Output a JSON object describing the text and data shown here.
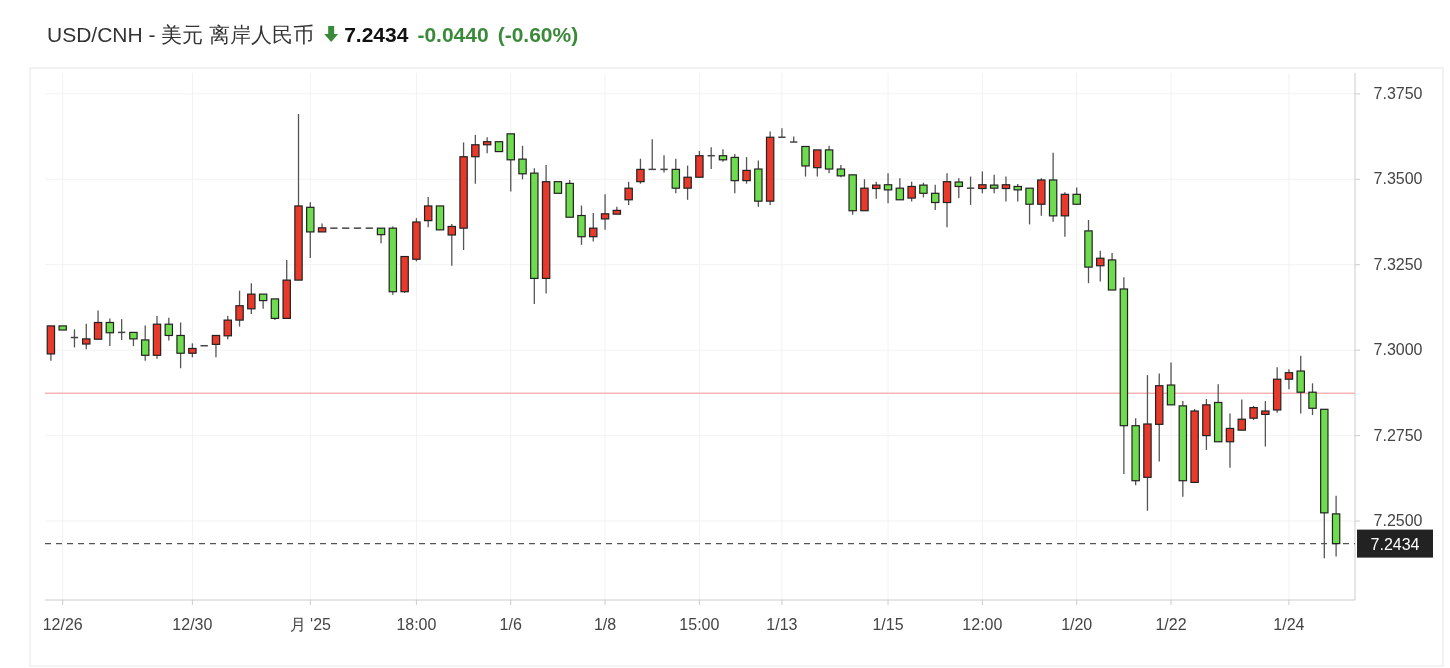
{
  "chart_data": {
    "type": "candlestick",
    "title": "USD/CNH - 美元 离岸人民币",
    "annotations": [
      "7.2434",
      "-0.0440",
      "(-0.60%)"
    ],
    "categories": [
      null,
      "12/26",
      null,
      null,
      null,
      null,
      null,
      null,
      null,
      null,
      null,
      null,
      "12/30",
      null,
      null,
      null,
      null,
      null,
      null,
      null,
      null,
      null,
      "月 '25",
      null,
      null,
      null,
      null,
      null,
      null,
      null,
      null,
      "18:00",
      null,
      null,
      null,
      null,
      null,
      null,
      null,
      "1/6",
      null,
      null,
      null,
      null,
      null,
      null,
      null,
      "1/8",
      null,
      null,
      null,
      null,
      null,
      null,
      null,
      "15:00",
      null,
      null,
      null,
      null,
      null,
      null,
      "1/13",
      null,
      null,
      null,
      null,
      null,
      null,
      null,
      null,
      "1/15",
      null,
      null,
      null,
      null,
      null,
      null,
      null,
      "12:00",
      null,
      null,
      null,
      null,
      null,
      null,
      null,
      "1/20",
      null,
      null,
      null,
      null,
      null,
      null,
      null,
      "1/22",
      null,
      null,
      null,
      null,
      null,
      null,
      null,
      null,
      null,
      "1/24",
      null,
      null,
      null,
      null
    ],
    "ohlc": [
      [
        7.2989,
        7.3071,
        7.2969,
        7.3071
      ],
      [
        7.3071,
        7.3071,
        7.3059,
        7.3059
      ],
      [
        7.3037,
        7.3061,
        7.3008,
        7.3037
      ],
      [
        7.3018,
        7.3077,
        7.3003,
        7.3033
      ],
      [
        7.3032,
        7.3116,
        7.3032,
        7.3081
      ],
      [
        7.3081,
        7.3093,
        7.3012,
        7.3051
      ],
      [
        7.3052,
        7.3091,
        7.303,
        7.3052
      ],
      [
        7.3052,
        7.3052,
        7.3012,
        7.3033
      ],
      [
        7.303,
        7.3072,
        7.2969,
        7.2985
      ],
      [
        7.2985,
        7.31,
        7.2975,
        7.3076
      ],
      [
        7.3076,
        7.3095,
        7.3028,
        7.3043
      ],
      [
        7.3043,
        7.3081,
        7.2947,
        7.2991
      ],
      [
        7.2991,
        7.302,
        7.2979,
        7.3005
      ],
      [
        7.3013,
        7.3013,
        7.3013,
        7.3013
      ],
      [
        7.3017,
        7.3043,
        7.2979,
        7.3043
      ],
      [
        7.3042,
        7.31,
        7.3032,
        7.3088
      ],
      [
        7.3088,
        7.3174,
        7.3069,
        7.313
      ],
      [
        7.3121,
        7.3196,
        7.3106,
        7.3164
      ],
      [
        7.3164,
        7.3164,
        7.3121,
        7.3145
      ],
      [
        7.315,
        7.315,
        7.3088,
        7.3093
      ],
      [
        7.3093,
        7.3264,
        7.3093,
        7.3205
      ],
      [
        7.3205,
        7.3691,
        7.3205,
        7.3422
      ],
      [
        7.3418,
        7.3433,
        7.327,
        7.3346
      ],
      [
        7.3346,
        7.3371,
        7.3346,
        7.3358
      ],
      [
        7.3357,
        7.3357,
        7.3357,
        7.3357
      ],
      [
        7.3357,
        7.3357,
        7.3357,
        7.3357
      ],
      [
        7.3357,
        7.3357,
        7.3357,
        7.3357
      ],
      [
        7.3357,
        7.3357,
        7.3357,
        7.3357
      ],
      [
        7.3357,
        7.3357,
        7.3313,
        7.3338
      ],
      [
        7.3357,
        7.3362,
        7.3162,
        7.3171
      ],
      [
        7.3171,
        7.3274,
        7.3168,
        7.3274
      ],
      [
        7.3266,
        7.3386,
        7.326,
        7.3375
      ],
      [
        7.3379,
        7.3448,
        7.336,
        7.3422
      ],
      [
        7.3422,
        7.3422,
        7.3352,
        7.3352
      ],
      [
        7.3337,
        7.3369,
        7.3247,
        7.3362
      ],
      [
        7.3357,
        7.3608,
        7.3293,
        7.3566
      ],
      [
        7.3566,
        7.363,
        7.3487,
        7.3601
      ],
      [
        7.3601,
        7.3623,
        7.3576,
        7.361
      ],
      [
        7.361,
        7.361,
        7.3581,
        7.3581
      ],
      [
        7.3633,
        7.3633,
        7.3464,
        7.3557
      ],
      [
        7.3559,
        7.3598,
        7.35,
        7.3516
      ],
      [
        7.3518,
        7.3532,
        7.3135,
        7.321
      ],
      [
        7.321,
        7.3542,
        7.3166,
        7.3493
      ],
      [
        7.3493,
        7.3493,
        7.3459,
        7.3459
      ],
      [
        7.3488,
        7.3498,
        7.3389,
        7.3389
      ],
      [
        7.3394,
        7.3423,
        7.3308,
        7.3332
      ],
      [
        7.3332,
        7.3401,
        7.3318,
        7.3357
      ],
      [
        7.3384,
        7.3456,
        7.3352,
        7.3399
      ],
      [
        7.3398,
        7.342,
        7.3398,
        7.3409
      ],
      [
        7.344,
        7.3493,
        7.3425,
        7.3474
      ],
      [
        7.3493,
        7.356,
        7.3487,
        7.3529
      ],
      [
        7.3529,
        7.3617,
        7.3529,
        7.3529
      ],
      [
        7.3529,
        7.357,
        7.352,
        7.3529
      ],
      [
        7.3529,
        7.356,
        7.3459,
        7.3474
      ],
      [
        7.3474,
        7.354,
        7.344,
        7.3506
      ],
      [
        7.3506,
        7.3583,
        7.3506,
        7.3569
      ],
      [
        7.3569,
        7.3594,
        7.353,
        7.3569
      ],
      [
        7.3569,
        7.3588,
        7.3551,
        7.3557
      ],
      [
        7.3564,
        7.3574,
        7.3459,
        7.3496
      ],
      [
        7.3496,
        7.3565,
        7.3487,
        7.3526
      ],
      [
        7.353,
        7.3555,
        7.342,
        7.3436
      ],
      [
        7.3436,
        7.364,
        7.3425,
        7.3623
      ],
      [
        7.3623,
        7.3649,
        7.3623,
        7.3623
      ],
      [
        7.3609,
        7.3625,
        7.3609,
        7.3609
      ],
      [
        7.3596,
        7.3596,
        7.3508,
        7.3539
      ],
      [
        7.3534,
        7.3586,
        7.3508,
        7.3586
      ],
      [
        7.3586,
        7.3598,
        7.3518,
        7.353
      ],
      [
        7.353,
        7.3542,
        7.3506,
        7.351
      ],
      [
        7.3513,
        7.3513,
        7.3396,
        7.3408
      ],
      [
        7.3408,
        7.35,
        7.3408,
        7.3474
      ],
      [
        7.3473,
        7.3493,
        7.3443,
        7.3483
      ],
      [
        7.3484,
        7.3518,
        7.343,
        7.3469
      ],
      [
        7.3474,
        7.3503,
        7.344,
        7.344
      ],
      [
        7.3445,
        7.3493,
        7.3435,
        7.3479
      ],
      [
        7.3483,
        7.349,
        7.3447,
        7.3459
      ],
      [
        7.3459,
        7.3484,
        7.341,
        7.3432
      ],
      [
        7.3432,
        7.3518,
        7.336,
        7.3493
      ],
      [
        7.3492,
        7.3503,
        7.3445,
        7.3479
      ],
      [
        7.3474,
        7.3508,
        7.3425,
        7.3474
      ],
      [
        7.3473,
        7.3523,
        7.3459,
        7.3484
      ],
      [
        7.3483,
        7.3513,
        7.3459,
        7.3474
      ],
      [
        7.3473,
        7.3508,
        7.3435,
        7.3484
      ],
      [
        7.3479,
        7.3486,
        7.3435,
        7.3469
      ],
      [
        7.3474,
        7.3474,
        7.3368,
        7.3427
      ],
      [
        7.3427,
        7.3503,
        7.3393,
        7.3498
      ],
      [
        7.3498,
        7.3578,
        7.3376,
        7.3393
      ],
      [
        7.3393,
        7.3462,
        7.3332,
        7.3456
      ],
      [
        7.3456,
        7.3476,
        7.3427,
        7.3427
      ],
      [
        7.3349,
        7.3381,
        7.3196,
        7.3243
      ],
      [
        7.3247,
        7.3291,
        7.3201,
        7.3269
      ],
      [
        7.3264,
        7.3284,
        7.3176,
        7.3176
      ],
      [
        7.3179,
        7.3213,
        7.2638,
        7.2779
      ],
      [
        7.2779,
        7.2801,
        7.2605,
        7.2618
      ],
      [
        7.2628,
        7.2927,
        7.253,
        7.2784
      ],
      [
        7.2783,
        7.2932,
        7.2674,
        7.2896
      ],
      [
        7.2898,
        7.2964,
        7.284,
        7.284
      ],
      [
        7.2837,
        7.2851,
        7.2571,
        7.2618
      ],
      [
        7.2613,
        7.2828,
        7.2613,
        7.2822
      ],
      [
        7.275,
        7.2857,
        7.2708,
        7.284
      ],
      [
        7.2847,
        7.29,
        7.2732,
        7.2732
      ],
      [
        7.2732,
        7.2815,
        7.2656,
        7.2771
      ],
      [
        7.2766,
        7.2856,
        7.2766,
        7.2798
      ],
      [
        7.2801,
        7.2837,
        7.2796,
        7.2832
      ],
      [
        7.2812,
        7.2851,
        7.2718,
        7.2822
      ],
      [
        7.2825,
        7.295,
        7.2817,
        7.2915
      ],
      [
        7.2915,
        7.2944,
        7.2886,
        7.2934
      ],
      [
        7.2939,
        7.2984,
        7.2815,
        7.2877
      ],
      [
        7.2877,
        7.2903,
        7.281,
        7.283
      ],
      [
        7.2827,
        7.2827,
        7.2391,
        7.2524
      ],
      [
        7.2521,
        7.2574,
        7.2396,
        7.2434
      ]
    ],
    "colors": [
      "#e8392b",
      "#6fdc4f",
      "#444444",
      "#e8392b",
      "#e8392b",
      "#6fdc4f",
      "#444444",
      "#6fdc4f",
      "#6fdc4f",
      "#e8392b",
      "#6fdc4f",
      "#6fdc4f",
      "#e8392b",
      "#444444",
      "#e8392b",
      "#e8392b",
      "#e8392b",
      "#e8392b",
      "#6fdc4f",
      "#6fdc4f",
      "#e8392b",
      "#e8392b",
      "#6fdc4f",
      "#e8392b",
      "#444444",
      "#444444",
      "#444444",
      "#444444",
      "#6fdc4f",
      "#6fdc4f",
      "#e8392b",
      "#e8392b",
      "#e8392b",
      "#6fdc4f",
      "#e8392b",
      "#e8392b",
      "#e8392b",
      "#e8392b",
      "#6fdc4f",
      "#6fdc4f",
      "#6fdc4f",
      "#6fdc4f",
      "#e8392b",
      "#6fdc4f",
      "#6fdc4f",
      "#6fdc4f",
      "#e8392b",
      "#e8392b",
      "#e8392b",
      "#e8392b",
      "#e8392b",
      "#444444",
      "#444444",
      "#6fdc4f",
      "#e8392b",
      "#e8392b",
      "#444444",
      "#6fdc4f",
      "#6fdc4f",
      "#e8392b",
      "#6fdc4f",
      "#e8392b",
      "#444444",
      "#444444",
      "#6fdc4f",
      "#e8392b",
      "#6fdc4f",
      "#6fdc4f",
      "#6fdc4f",
      "#e8392b",
      "#e8392b",
      "#6fdc4f",
      "#6fdc4f",
      "#e8392b",
      "#6fdc4f",
      "#6fdc4f",
      "#e8392b",
      "#6fdc4f",
      "#444444",
      "#e8392b",
      "#6fdc4f",
      "#e8392b",
      "#6fdc4f",
      "#6fdc4f",
      "#e8392b",
      "#6fdc4f",
      "#e8392b",
      "#6fdc4f",
      "#6fdc4f",
      "#e8392b",
      "#6fdc4f",
      "#6fdc4f",
      "#6fdc4f",
      "#e8392b",
      "#e8392b",
      "#6fdc4f",
      "#6fdc4f",
      "#e8392b",
      "#e8392b",
      "#6fdc4f",
      "#e8392b",
      "#e8392b",
      "#e8392b",
      "#e8392b",
      "#e8392b",
      "#e8392b",
      "#6fdc4f",
      "#6fdc4f",
      "#6fdc4f",
      "#6fdc4f"
    ],
    "ylim": [
      7.2269,
      7.3811
    ],
    "yticks": [
      {
        "value": 7.25,
        "label": "7.2500"
      },
      {
        "value": 7.275,
        "label": "7.2750"
      },
      {
        "value": 7.3,
        "label": "7.3000"
      },
      {
        "value": 7.325,
        "label": "7.3250"
      },
      {
        "value": 7.35,
        "label": "7.3500"
      },
      {
        "value": 7.375,
        "label": "7.3750"
      }
    ],
    "grid": true,
    "ref_lines": [
      {
        "axis": "y",
        "value": 7.2874,
        "color": "#f5b5b5",
        "line_style": "solid"
      },
      {
        "axis": "y",
        "value": 7.2434,
        "label": "7.2434",
        "color": "#555555",
        "line_style": "dashed"
      }
    ]
  }
}
